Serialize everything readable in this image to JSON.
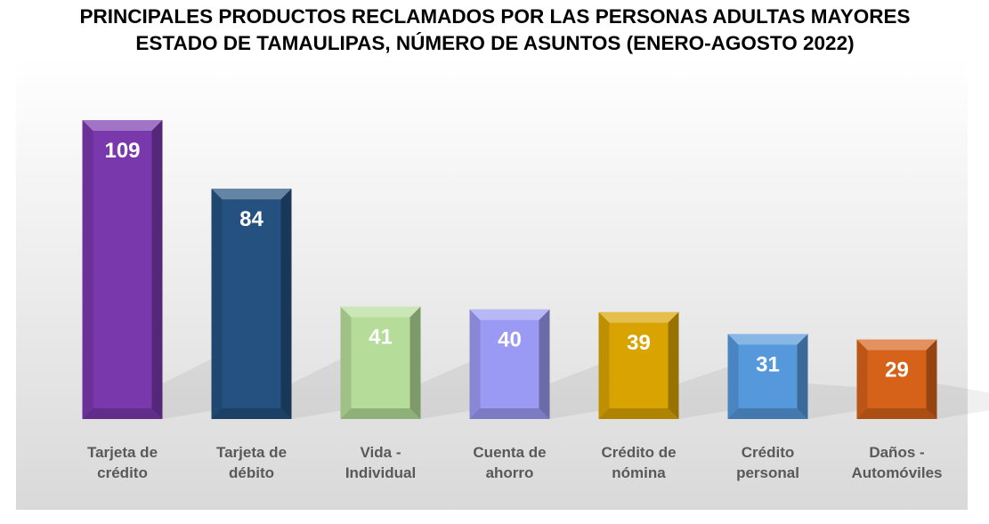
{
  "chart_data": {
    "type": "bar",
    "title": "PRINCIPALES PRODUCTOS RECLAMADOS POR LAS PERSONAS ADULTAS MAYORES",
    "subtitle": "ESTADO DE TAMAULIPAS, NÚMERO DE ASUNTOS (ENERO-AGOSTO 2022)",
    "categories": [
      "Tarjeta de crédito",
      "Tarjeta de débito",
      "Vida - Individual",
      "Cuenta de ahorro",
      "Crédito de nómina",
      "Crédito personal",
      "Daños - Automóviles"
    ],
    "values": [
      109,
      84,
      41,
      40,
      39,
      31,
      29
    ],
    "colors": [
      "#7a38ad",
      "#24517f",
      "#b5dc98",
      "#9a9af4",
      "#d9a402",
      "#5598dc",
      "#d6621a"
    ]
  }
}
